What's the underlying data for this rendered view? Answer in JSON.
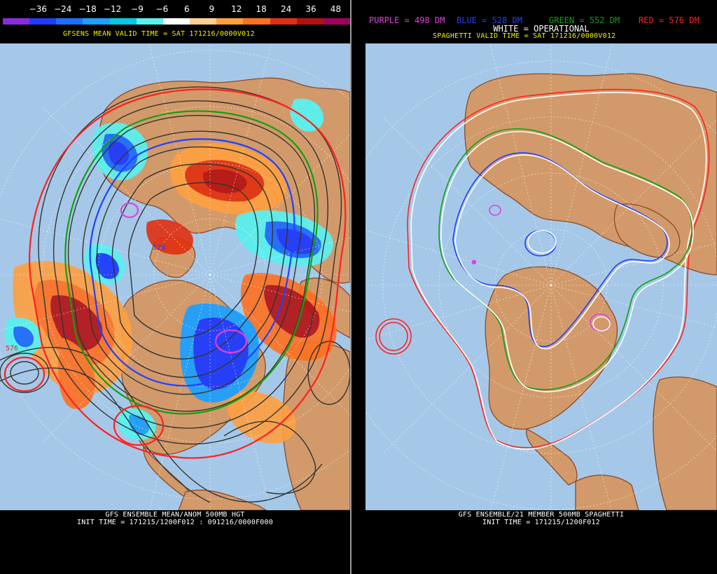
{
  "left": {
    "legend": {
      "labels": [
        "−36",
        "−24",
        "−18",
        "−12",
        "−9",
        "−6",
        "6",
        "9",
        "12",
        "18",
        "24",
        "36",
        "48"
      ],
      "colors": [
        "#8a2be2",
        "#1e3cff",
        "#1e6eff",
        "#1ea0ff",
        "#00c8e6",
        "#5af0f0",
        "#ffffff",
        "#ffd090",
        "#ffa040",
        "#ff7020",
        "#e03010",
        "#b41010",
        "#a00060"
      ]
    },
    "valid_time": "GFSENS MEAN VALID TIME = SAT 171216/0000V012",
    "contour_labels": [
      "528",
      "576"
    ],
    "caption_title": "GFS ENSEMBLE MEAN/ANOM 500MB HGT",
    "caption_init": "INIT TIME = 171215/1200F012 : 091216/0000F000"
  },
  "right": {
    "legend": {
      "purple": "PURPLE = 498 DM",
      "blue": "BLUE = 528 DM",
      "green": "GREEN = 552 DM",
      "red": "RED = 576 DM",
      "white": "WHITE = OPERATIONAL",
      "colors": {
        "purple": "#e040e0",
        "blue": "#2040ff",
        "green": "#10a010",
        "red": "#ff2020",
        "white": "#ffffff"
      }
    },
    "valid_time": "SPAGHETTI VALID TIME = SAT 171216/0000V012",
    "caption_title": "GFS ENSEMBLE/21 MEMBER 500MB SPAGHETTI",
    "caption_init": "INIT TIME = 171215/1200F012"
  },
  "colors": {
    "ocean": "#a6c8e8",
    "land": "#d29a6a",
    "coast": "#8b4a2a",
    "grid": "#ffffff"
  }
}
